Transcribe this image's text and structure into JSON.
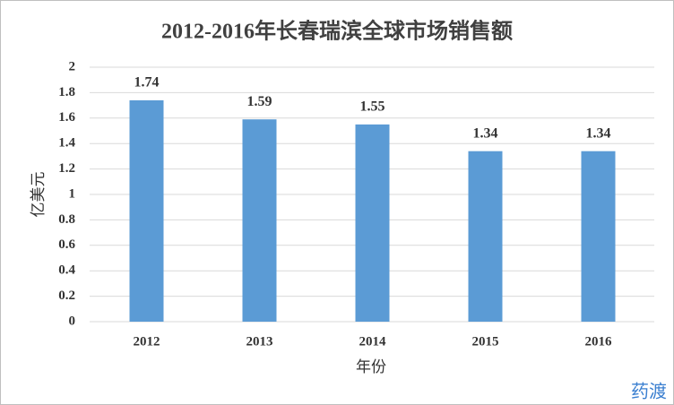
{
  "chart_data": {
    "type": "bar",
    "title": "2012-2016年长春瑞滨全球市场销售额",
    "x_label": "年份",
    "y_label": "亿美元",
    "categories": [
      "2012",
      "2013",
      "2014",
      "2015",
      "2016"
    ],
    "values": [
      1.74,
      1.59,
      1.55,
      1.34,
      1.34
    ],
    "color": "#5b9bd5",
    "ylim": [
      0,
      2
    ],
    "yticks": [
      0,
      0.2,
      0.4,
      0.6,
      0.8,
      1,
      1.2,
      1.4,
      1.6,
      1.8,
      2
    ],
    "grid": true,
    "watermark": "药渡"
  }
}
